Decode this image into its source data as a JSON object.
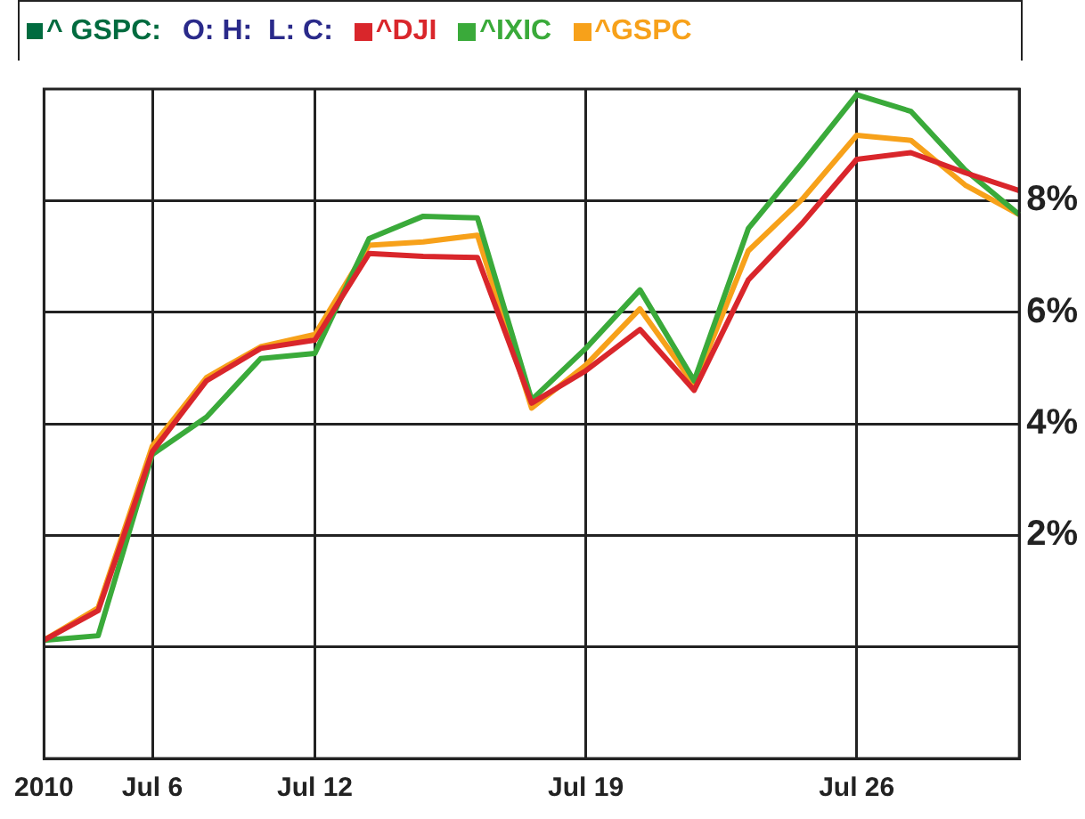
{
  "chart_data": {
    "type": "line",
    "title": "^ GSPC:",
    "subtitle": "O: H:  L: C:",
    "categories": [
      "2010",
      null,
      "Jul 6",
      null,
      null,
      "Jul 12",
      null,
      null,
      null,
      null,
      "Jul 19",
      null,
      null,
      null,
      null,
      "Jul 26",
      null,
      null,
      null
    ],
    "series": [
      {
        "name": "^DJI",
        "color": "#d9262b",
        "values": [
          0.12,
          0.65,
          3.5,
          4.77,
          5.35,
          5.5,
          7.05,
          7.0,
          6.98,
          4.37,
          4.95,
          5.69,
          4.6,
          6.58,
          7.6,
          8.74,
          8.86,
          8.5,
          8.18
        ]
      },
      {
        "name": "^IXIC",
        "color": "#3aaa3a",
        "values": [
          0.12,
          0.2,
          3.45,
          4.12,
          5.17,
          5.26,
          7.32,
          7.72,
          7.69,
          4.43,
          5.35,
          6.4,
          4.77,
          7.5,
          8.68,
          9.9,
          9.6,
          8.55,
          7.75
        ]
      },
      {
        "name": "^GSPC",
        "color": "#f7a11a",
        "values": [
          0.12,
          0.7,
          3.6,
          4.83,
          5.38,
          5.6,
          7.2,
          7.26,
          7.38,
          4.28,
          5.05,
          6.06,
          4.7,
          7.1,
          8.03,
          9.17,
          9.08,
          8.28,
          7.75
        ]
      }
    ],
    "ylim": [
      -2,
      10
    ],
    "yticks": [
      {
        "value": 0,
        "label": null
      },
      {
        "value": 2,
        "label": "2%"
      },
      {
        "value": 4,
        "label": "4%"
      },
      {
        "value": 6,
        "label": "6%"
      },
      {
        "value": 8,
        "label": "8%"
      }
    ],
    "grid": true,
    "legend": "top left",
    "marker": "none",
    "line_style": "solid"
  }
}
